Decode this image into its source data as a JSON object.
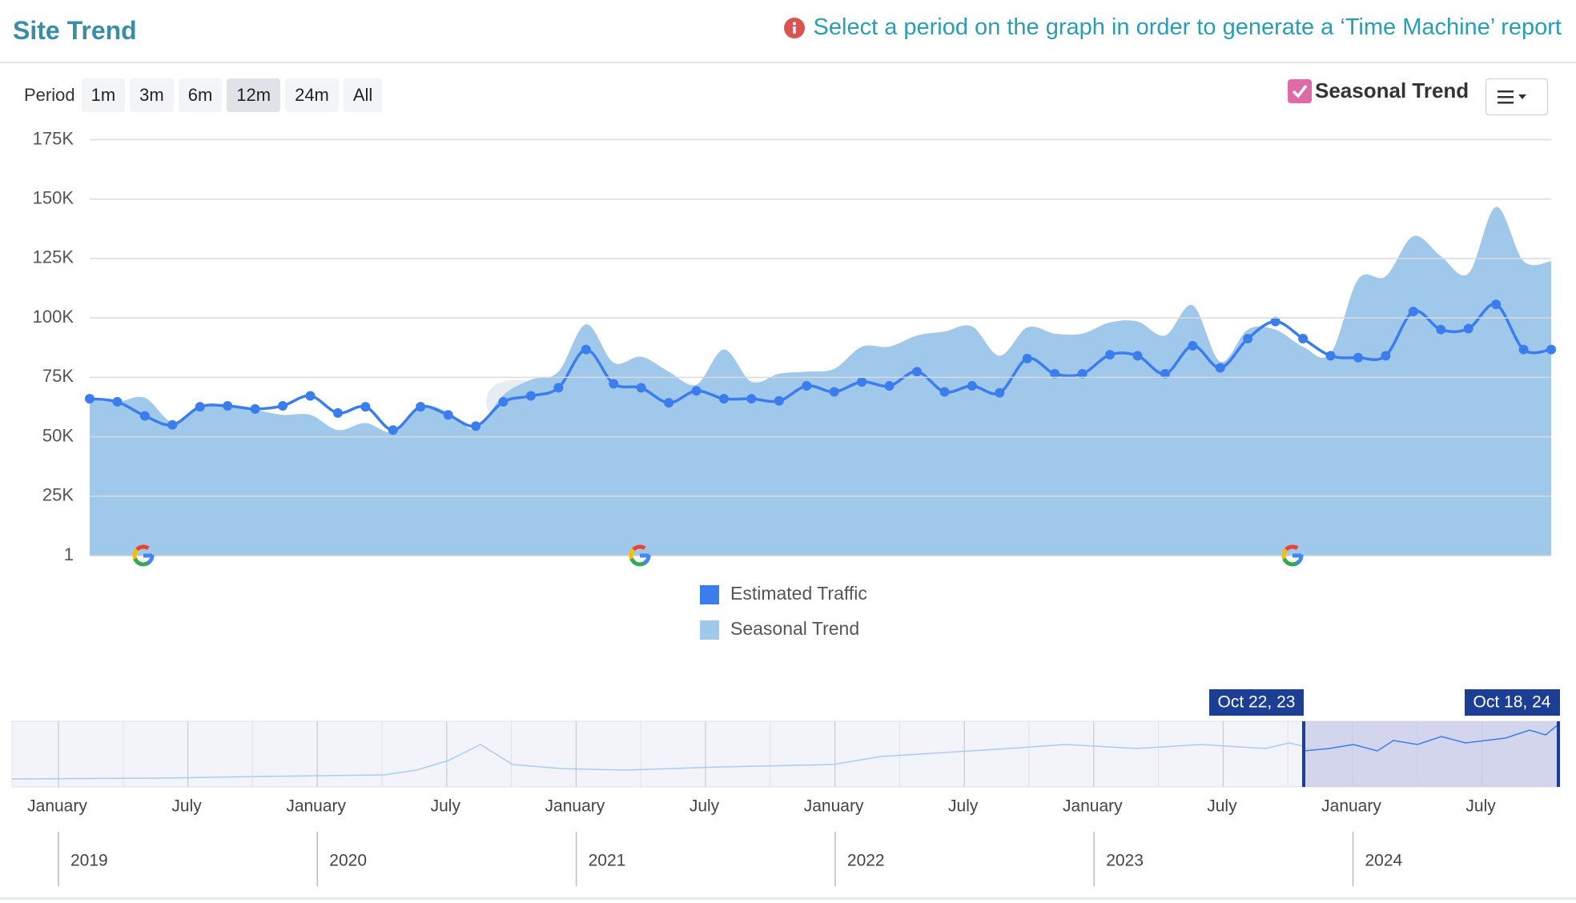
{
  "header": {
    "title": "Site Trend",
    "message": "Select a period on the graph in order to generate a ‘Time Machine’ report"
  },
  "toolbar": {
    "period_label": "Period",
    "periods": [
      "1m",
      "3m",
      "6m",
      "12m",
      "24m",
      "All"
    ],
    "selected_period": "12m",
    "seasonal_toggle": "Seasonal Trend",
    "seasonal_checked": true
  },
  "chart_data": {
    "type": "line",
    "watermark": "seozoom",
    "grid": true,
    "ylim": [
      1,
      175000
    ],
    "yticks": [
      1,
      {
        "value": 25000,
        "label": "25K"
      },
      {
        "value": 50000,
        "label": "50K"
      },
      {
        "value": 75000,
        "label": "75K"
      },
      {
        "value": 100000,
        "label": "100K"
      },
      {
        "value": 125000,
        "label": "125K"
      },
      {
        "value": 150000,
        "label": "150K"
      },
      {
        "value": 175000,
        "label": "175K"
      }
    ],
    "series": [
      {
        "name": "Estimated Traffic",
        "color": "#3b7ded",
        "kind": "line",
        "values": [
          66000,
          64700,
          58800,
          55000,
          62600,
          63000,
          61700,
          63000,
          67200,
          60000,
          62600,
          52800,
          62600,
          59200,
          54500,
          64700,
          67200,
          70600,
          86700,
          72300,
          70600,
          64300,
          69300,
          66000,
          66000,
          65100,
          71400,
          68900,
          73100,
          71400,
          77400,
          68900,
          71400,
          68500,
          82900,
          76500,
          76500,
          84500,
          84100,
          76500,
          88300,
          79000,
          91300,
          98500,
          91300,
          84100,
          83300,
          84100,
          102700,
          95100,
          95500,
          105700,
          86700,
          86700
        ]
      },
      {
        "name": "Seasonal Trend",
        "color": "#a0c8ea",
        "kind": "area",
        "values": [
          65500,
          64700,
          66400,
          56200,
          63000,
          62600,
          61300,
          59200,
          59200,
          52800,
          55800,
          52000,
          62600,
          60400,
          53200,
          67600,
          74000,
          77400,
          97300,
          81200,
          83700,
          77400,
          71900,
          86700,
          73100,
          76500,
          77400,
          78600,
          87900,
          87900,
          92600,
          94300,
          96400,
          84100,
          96000,
          93400,
          93400,
          98100,
          98500,
          92600,
          105300,
          81600,
          95100,
          95100,
          87900,
          85000,
          116300,
          117500,
          134400,
          126000,
          118700,
          146700,
          123900,
          123900
        ]
      }
    ]
  },
  "navigator": {
    "range_start": "Oct 22, 23",
    "range_end": "Oct 18, 24",
    "months": [
      "January",
      "July",
      "January",
      "July",
      "January",
      "July",
      "January",
      "July",
      "January",
      "July",
      "January",
      "July"
    ],
    "years": [
      "2019",
      "2020",
      "2021",
      "2022",
      "2023",
      "2024"
    ]
  }
}
